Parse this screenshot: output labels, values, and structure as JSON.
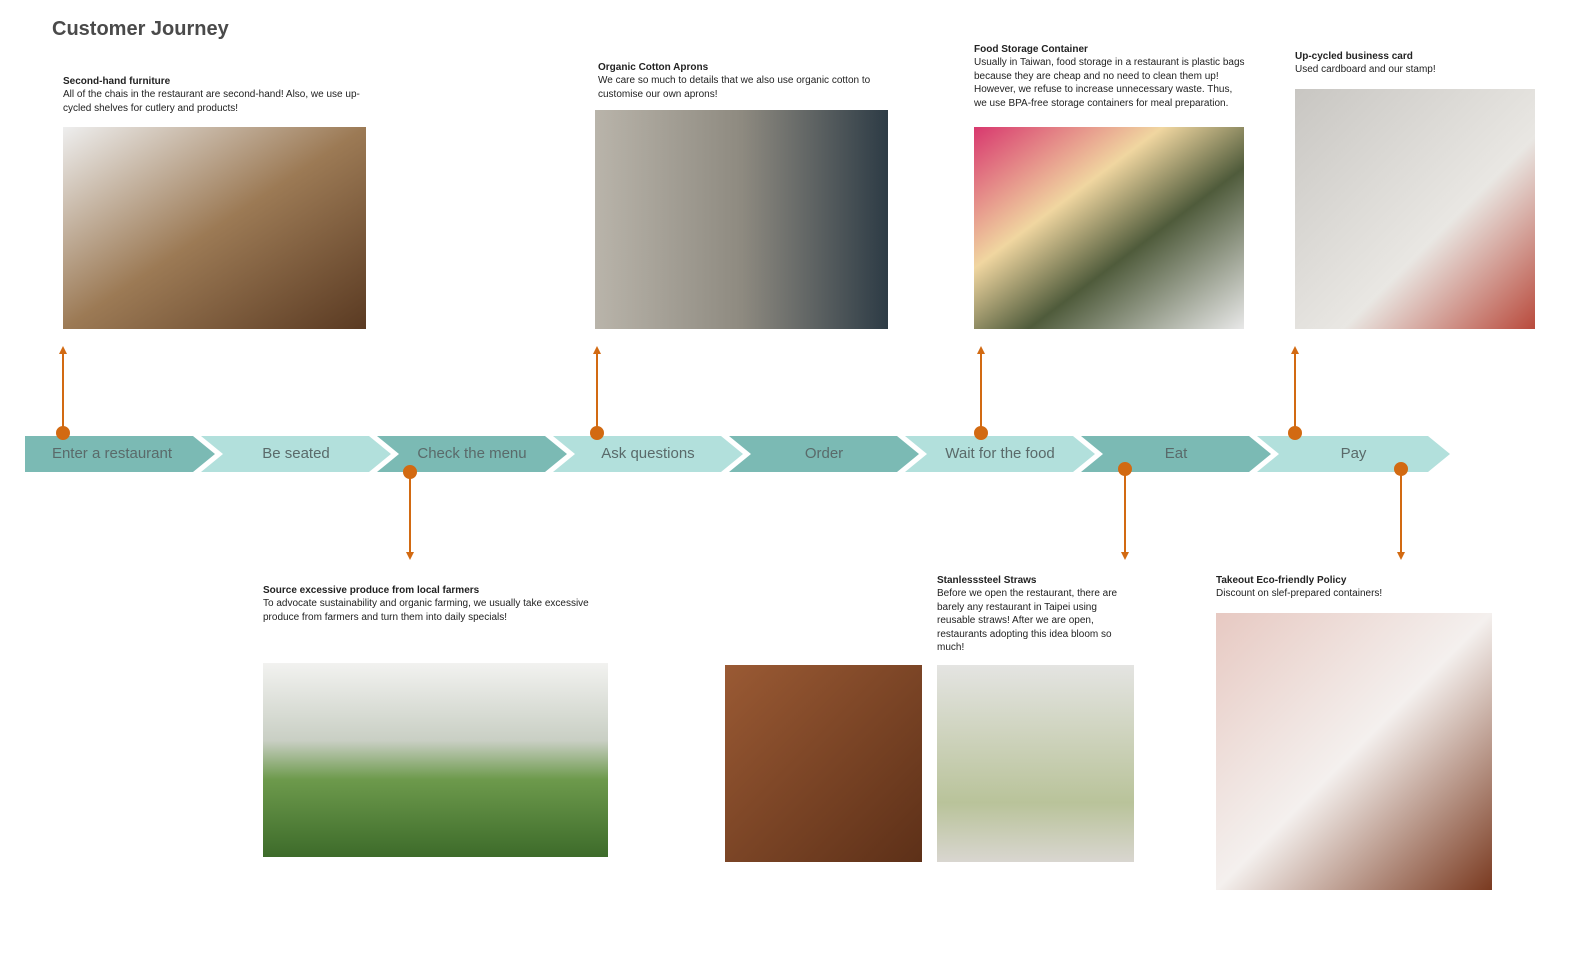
{
  "title": "Customer Journey",
  "steps": [
    "Enter a restaurant",
    "Be seated",
    "Check the menu",
    "Ask questions",
    "Order",
    "Wait for the food",
    "Eat",
    "Pay"
  ],
  "notes": [
    {
      "title": "Second-hand furniture",
      "body": "All of the chais in the restaurant are second-hand! Also, we use up-cycled shelves for cutlery and products!"
    },
    {
      "title": "Source excessive produce from local farmers",
      "body": "To advocate sustainability and organic farming, we usually take excessive produce from farmers and turn them into daily specials!"
    },
    {
      "title": "Organic Cotton Aprons",
      "body": "We care so much to details that we also use organic cotton to customise our own aprons!"
    },
    {
      "title": "Food Storage Container",
      "body": "Usually in Taiwan, food storage in a restaurant is plastic bags because they are cheap and no need to clean them up! However, we refuse to increase unnecessary waste. Thus, we use BPA-free storage containers for meal preparation."
    },
    {
      "title": "Stanlesssteel Straws",
      "body": "Before we open the restaurant, there are barely any restaurant in Taipei using reusable straws! After we are open, restaurants adopting this idea bloom so much!"
    },
    {
      "title": "Up-cycled business card",
      "body": "Used cardboard and our stamp!"
    },
    {
      "title": "Takeout Eco-friendly Policy",
      "body": "Discount on slef-prepared containers!"
    }
  ]
}
